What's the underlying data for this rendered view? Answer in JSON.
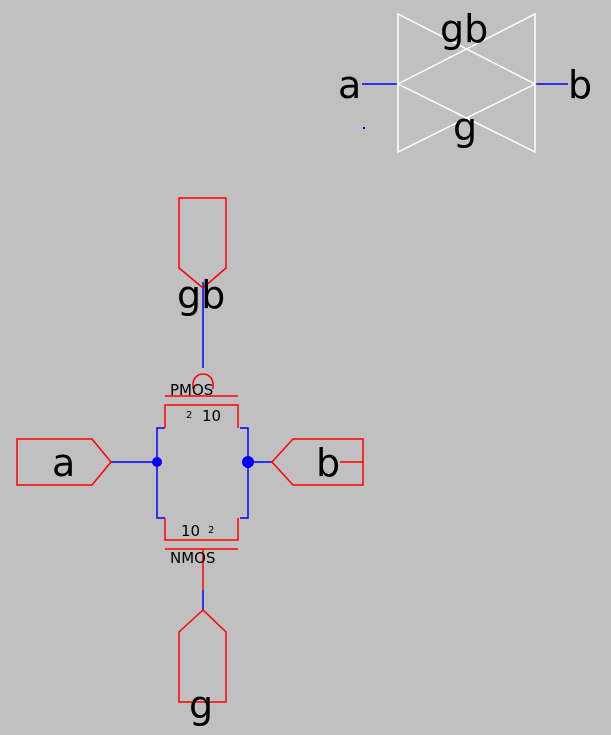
{
  "symbol": {
    "pin_a": "a",
    "pin_b": "b",
    "pin_gb": "gb",
    "pin_g": "g"
  },
  "schematic": {
    "port_gb": "gb",
    "port_a": "a",
    "port_b": "b",
    "port_g": "g",
    "pmos": {
      "label": "PMOS",
      "width": "10",
      "length": "2"
    },
    "nmos": {
      "label": "NMOS",
      "width": "10",
      "length": "2"
    }
  },
  "colors": {
    "background": "#c0c0c0",
    "device": "#ff0000",
    "wire": "#0000ff",
    "symbol": "#ffffff",
    "text": "#000000"
  }
}
